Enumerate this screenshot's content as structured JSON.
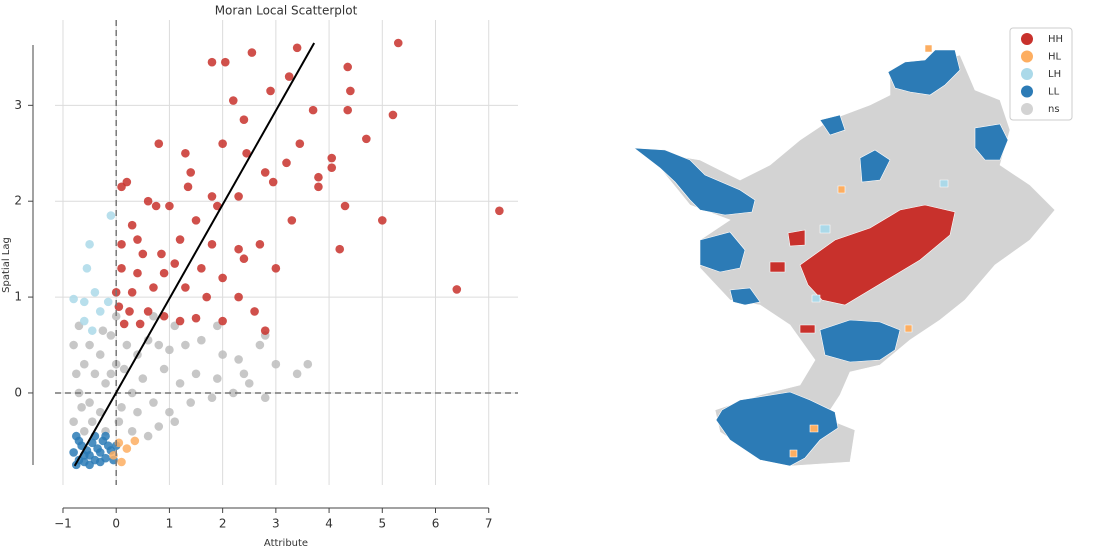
{
  "chart_data": [
    {
      "type": "scatter",
      "title": "Moran Local Scatterplot",
      "xlabel": "Attribute",
      "ylabel": "Spatial Lag",
      "xlim": [
        -1.15,
        7.55
      ],
      "ylim": [
        -0.96,
        3.89
      ],
      "xticks": [
        {
          "value": -1,
          "label": "−1"
        },
        0,
        1,
        2,
        3,
        4,
        5,
        6,
        7
      ],
      "yticks": [
        0,
        1,
        2,
        3
      ],
      "grid": true,
      "hline": 0,
      "vline": 0,
      "fit_line": {
        "x": [
          -0.78,
          3.72
        ],
        "y": [
          -0.76,
          3.65
        ],
        "color": "#000000"
      },
      "series": [
        {
          "color": "#bdbdbd",
          "x": [
            -0.7,
            -0.5,
            -0.3,
            -0.1,
            -0.6,
            -0.4,
            -0.2,
            0.0,
            0.2,
            0.4,
            0.6,
            0.8,
            1.0,
            1.3,
            1.6,
            2.0,
            2.3,
            2.7,
            2.8,
            3.6,
            3.4,
            2.5,
            2.2,
            1.9,
            1.5,
            1.2,
            0.9,
            0.5,
            0.3,
            -0.7,
            -0.5,
            -0.3,
            -0.8,
            -0.6,
            0.1,
            0.4,
            0.7,
            1.0,
            1.4,
            1.8,
            2.8,
            1.1,
            0.8,
            0.6,
            0.3,
            -0.2,
            -0.8,
            -0.75,
            -0.65,
            0.15,
            0.7,
            1.1,
            0.0,
            -0.25,
            1.9,
            2.4,
            3.0,
            0.05,
            -0.45,
            -0.1
          ],
          "y": [
            0.7,
            0.5,
            0.4,
            0.6,
            0.3,
            0.2,
            0.1,
            0.3,
            0.5,
            0.4,
            0.55,
            0.5,
            0.45,
            0.5,
            0.55,
            0.4,
            0.35,
            0.5,
            0.6,
            0.3,
            0.2,
            0.1,
            0.0,
            0.15,
            0.2,
            0.1,
            0.25,
            0.15,
            0.0,
            0.0,
            -0.1,
            -0.2,
            -0.3,
            -0.4,
            -0.15,
            -0.2,
            -0.1,
            -0.2,
            -0.1,
            -0.05,
            -0.05,
            -0.3,
            -0.35,
            -0.45,
            -0.4,
            -0.4,
            0.5,
            0.2,
            -0.15,
            0.25,
            0.8,
            0.7,
            0.8,
            0.65,
            0.7,
            0.2,
            0.3,
            -0.3,
            -0.3,
            0.2
          ]
        },
        {
          "color": "#c8312c",
          "x": [
            1.8,
            2.05,
            2.55,
            3.4,
            4.35,
            5.3,
            4.4,
            4.35,
            2.2,
            2.4,
            2.9,
            3.25,
            3.7,
            5.2,
            4.7,
            3.45,
            3.8,
            4.05,
            4.05,
            2.0,
            2.45,
            2.8,
            2.95,
            3.2,
            1.3,
            0.8,
            0.1,
            0.2,
            1.4,
            1.35,
            1.8,
            2.3,
            0.6,
            0.75,
            1.0,
            1.9,
            3.8,
            4.3,
            5.0,
            7.2,
            3.3,
            4.2,
            6.4,
            0.3,
            1.5,
            0.4,
            1.2,
            2.3,
            2.7,
            0.1,
            0.5,
            0.85,
            1.8,
            2.4,
            0.1,
            0.4,
            0.9,
            1.1,
            1.6,
            2.0,
            3.0,
            0.0,
            0.3,
            0.7,
            1.3,
            1.7,
            2.3,
            0.05,
            0.25,
            0.6,
            0.9,
            1.5,
            2.0,
            2.6,
            0.15,
            0.45,
            1.2,
            2.8
          ],
          "y": [
            3.45,
            3.45,
            3.55,
            3.6,
            3.4,
            3.65,
            3.15,
            2.95,
            3.05,
            2.85,
            3.15,
            3.3,
            2.95,
            2.9,
            2.65,
            2.6,
            2.25,
            2.45,
            2.35,
            2.6,
            2.5,
            2.3,
            2.2,
            2.4,
            2.5,
            2.6,
            2.15,
            2.2,
            2.3,
            2.15,
            2.05,
            2.05,
            2.0,
            1.95,
            1.95,
            1.95,
            2.15,
            1.95,
            1.8,
            1.9,
            1.8,
            1.5,
            1.08,
            1.75,
            1.8,
            1.6,
            1.6,
            1.5,
            1.55,
            1.55,
            1.45,
            1.45,
            1.55,
            1.4,
            1.3,
            1.25,
            1.25,
            1.35,
            1.3,
            1.2,
            1.3,
            1.05,
            1.05,
            1.1,
            1.1,
            1.0,
            1.0,
            0.9,
            0.85,
            0.85,
            0.8,
            0.78,
            0.75,
            0.85,
            0.72,
            0.72,
            0.75,
            0.65
          ]
        },
        {
          "color": "#abd9e9",
          "x": [
            -0.1,
            -0.5,
            -0.55,
            -0.8,
            -0.6,
            -0.4,
            -0.3,
            -0.6,
            -0.45,
            -0.15
          ],
          "y": [
            1.85,
            1.55,
            1.3,
            0.98,
            0.95,
            1.05,
            0.85,
            0.75,
            0.65,
            0.95
          ]
        },
        {
          "color": "#2c7bb6",
          "x": [
            -0.75,
            -0.7,
            -0.6,
            -0.5,
            -0.4,
            -0.3,
            -0.2,
            -0.1,
            0.0,
            -0.65,
            -0.55,
            -0.45,
            -0.35,
            -0.25,
            -0.15,
            -0.8,
            -0.7,
            -0.6,
            -0.5,
            -0.3,
            -0.05,
            -0.75,
            -0.4,
            -0.2
          ],
          "y": [
            -0.75,
            -0.7,
            -0.72,
            -0.65,
            -0.7,
            -0.62,
            -0.68,
            -0.6,
            -0.55,
            -0.55,
            -0.6,
            -0.52,
            -0.58,
            -0.5,
            -0.55,
            -0.62,
            -0.5,
            -0.65,
            -0.75,
            -0.72,
            -0.7,
            -0.45,
            -0.45,
            -0.45
          ]
        },
        {
          "color": "#fdae61",
          "x": [
            0.05,
            0.2,
            0.35,
            0.1,
            -0.05
          ],
          "y": [
            -0.52,
            -0.58,
            -0.5,
            -0.72,
            -0.65
          ]
        }
      ]
    },
    {
      "type": "map",
      "legend_position": "upper right",
      "legend": [
        {
          "name": "HH",
          "color": "#c8312c"
        },
        {
          "name": "HL",
          "color": "#fdae61"
        },
        {
          "name": "LH",
          "color": "#abd9e9"
        },
        {
          "name": "LL",
          "color": "#2c7bb6"
        },
        {
          "name": "ns",
          "color": "#d3d3d3"
        }
      ]
    }
  ]
}
